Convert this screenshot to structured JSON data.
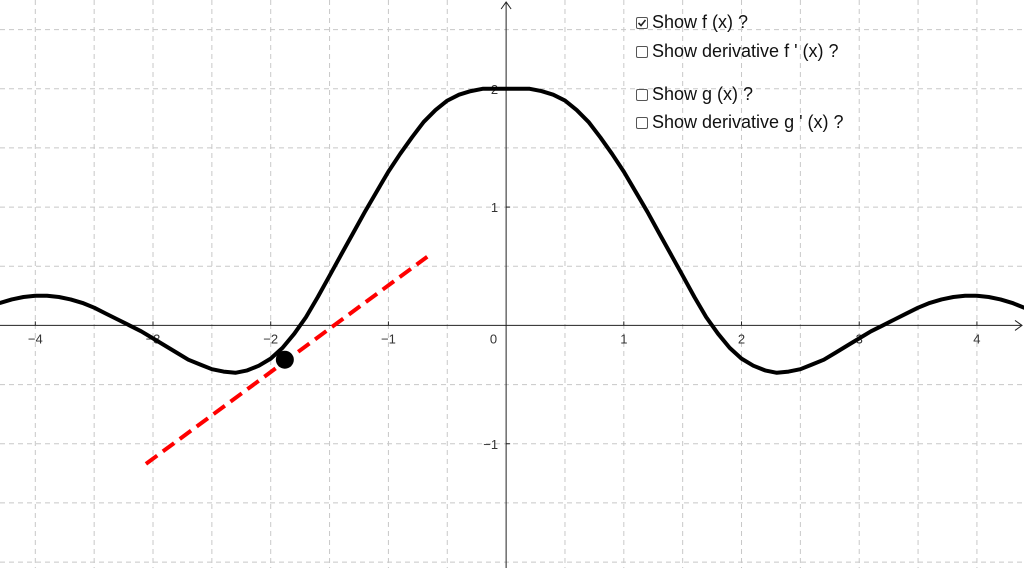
{
  "checkboxes": [
    {
      "label": "Show f (x) ?",
      "checked": true
    },
    {
      "label": "Show derivative f ' (x) ?",
      "checked": false
    },
    {
      "label": "Show g (x) ?",
      "checked": false
    },
    {
      "label": "Show derivative g ' (x) ?",
      "checked": false
    }
  ],
  "chart_data": {
    "type": "line",
    "title": "",
    "xlabel": "",
    "ylabel": "",
    "xlim": [
      -4.3,
      4.4
    ],
    "ylim": [
      -2.05,
      2.75
    ],
    "grid": true,
    "x_ticks": [
      {
        "value": -4,
        "label": "−4"
      },
      {
        "value": -3,
        "label": "−3"
      },
      {
        "value": -2,
        "label": "−2"
      },
      {
        "value": -1,
        "label": "−1"
      },
      {
        "value": 0,
        "label": "0"
      },
      {
        "value": 1,
        "label": "1"
      },
      {
        "value": 2,
        "label": "2"
      },
      {
        "value": 3,
        "label": "3"
      },
      {
        "value": 4,
        "label": "4"
      }
    ],
    "y_ticks": [
      {
        "value": -1,
        "label": "−1"
      },
      {
        "value": 1,
        "label": "1"
      },
      {
        "value": 2,
        "label": "2"
      }
    ],
    "curve": {
      "x": [
        -4.3,
        -4.2,
        -4.1,
        -4.0,
        -3.9,
        -3.8,
        -3.7,
        -3.6,
        -3.5,
        -3.4,
        -3.3,
        -3.2,
        -3.1,
        -3.0,
        -2.9,
        -2.8,
        -2.7,
        -2.6,
        -2.5,
        -2.4,
        -2.3,
        -2.2,
        -2.1,
        -2.0,
        -1.9,
        -1.8,
        -1.7,
        -1.6,
        -1.5,
        -1.4,
        -1.3,
        -1.2,
        -1.1,
        -1.0,
        -0.9,
        -0.8,
        -0.7,
        -0.6,
        -0.5,
        -0.4,
        -0.3,
        -0.2,
        -0.1,
        0.0,
        0.1,
        0.2,
        0.3,
        0.4,
        0.5,
        0.6,
        0.7,
        0.8,
        0.9,
        1.0,
        1.1,
        1.2,
        1.3,
        1.4,
        1.5,
        1.6,
        1.7,
        1.8,
        1.9,
        2.0,
        2.1,
        2.2,
        2.3,
        2.4,
        2.5,
        2.6,
        2.7,
        2.8,
        2.9,
        3.0,
        3.1,
        3.2,
        3.3,
        3.4,
        3.5,
        3.6,
        3.7,
        3.8,
        3.9,
        4.0,
        4.1,
        4.2,
        4.3,
        4.4
      ],
      "y": [
        0.19,
        0.22,
        0.24,
        0.25,
        0.25,
        0.24,
        0.22,
        0.19,
        0.15,
        0.1,
        0.05,
        0.0,
        -0.05,
        -0.11,
        -0.17,
        -0.23,
        -0.29,
        -0.33,
        -0.37,
        -0.39,
        -0.4,
        -0.38,
        -0.34,
        -0.28,
        -0.19,
        -0.07,
        0.07,
        0.24,
        0.42,
        0.6,
        0.78,
        0.96,
        1.13,
        1.3,
        1.45,
        1.59,
        1.72,
        1.82,
        1.9,
        1.95,
        1.98,
        2.0,
        2.0,
        2.0,
        2.0,
        2.0,
        1.98,
        1.95,
        1.9,
        1.82,
        1.72,
        1.59,
        1.45,
        1.3,
        1.13,
        0.96,
        0.78,
        0.6,
        0.42,
        0.24,
        0.07,
        -0.07,
        -0.19,
        -0.28,
        -0.34,
        -0.38,
        -0.4,
        -0.39,
        -0.37,
        -0.33,
        -0.29,
        -0.23,
        -0.17,
        -0.11,
        -0.05,
        0.0,
        0.05,
        0.1,
        0.15,
        0.19,
        0.22,
        0.24,
        0.25,
        0.25,
        0.24,
        0.22,
        0.19,
        0.15
      ]
    },
    "point": {
      "x": -1.88,
      "y": -0.29
    },
    "tangent": {
      "x": [
        -3.06,
        -0.67
      ],
      "y": [
        -1.17,
        0.58
      ]
    }
  }
}
